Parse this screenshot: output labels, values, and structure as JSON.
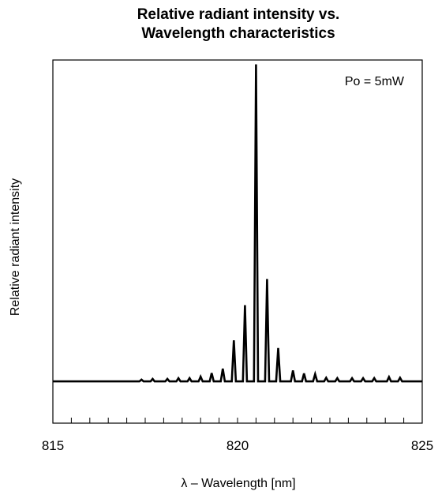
{
  "chart_data": {
    "type": "line",
    "title_lines": [
      "Relative radiant intensity vs.",
      "Wavelength characteristics"
    ],
    "xlabel": "λ – Wavelength [nm]",
    "ylabel": "Relative radiant intensity",
    "annotation": "Po = 5mW",
    "xlim": [
      815,
      825
    ],
    "ylim": [
      0,
      1
    ],
    "x_ticks": [
      815,
      820,
      825
    ],
    "x_tick_labels": [
      "815",
      "820",
      "825"
    ],
    "x_minor_step": 0.5,
    "grid": false,
    "legend": "none",
    "baseline": 0.115,
    "peaks": [
      {
        "x": 817.4,
        "y": 0.12
      },
      {
        "x": 817.7,
        "y": 0.122
      },
      {
        "x": 818.1,
        "y": 0.122
      },
      {
        "x": 818.4,
        "y": 0.124
      },
      {
        "x": 818.7,
        "y": 0.124
      },
      {
        "x": 819.0,
        "y": 0.128
      },
      {
        "x": 819.3,
        "y": 0.138
      },
      {
        "x": 819.6,
        "y": 0.15
      },
      {
        "x": 819.9,
        "y": 0.228
      },
      {
        "x": 820.2,
        "y": 0.325
      },
      {
        "x": 820.5,
        "y": 0.988
      },
      {
        "x": 820.8,
        "y": 0.397
      },
      {
        "x": 821.1,
        "y": 0.207
      },
      {
        "x": 821.5,
        "y": 0.145
      },
      {
        "x": 821.8,
        "y": 0.137
      },
      {
        "x": 822.1,
        "y": 0.135
      },
      {
        "x": 822.4,
        "y": 0.125
      },
      {
        "x": 822.7,
        "y": 0.124
      },
      {
        "x": 823.1,
        "y": 0.124
      },
      {
        "x": 823.4,
        "y": 0.124
      },
      {
        "x": 823.7,
        "y": 0.124
      },
      {
        "x": 824.1,
        "y": 0.127
      },
      {
        "x": 824.4,
        "y": 0.125
      }
    ]
  }
}
